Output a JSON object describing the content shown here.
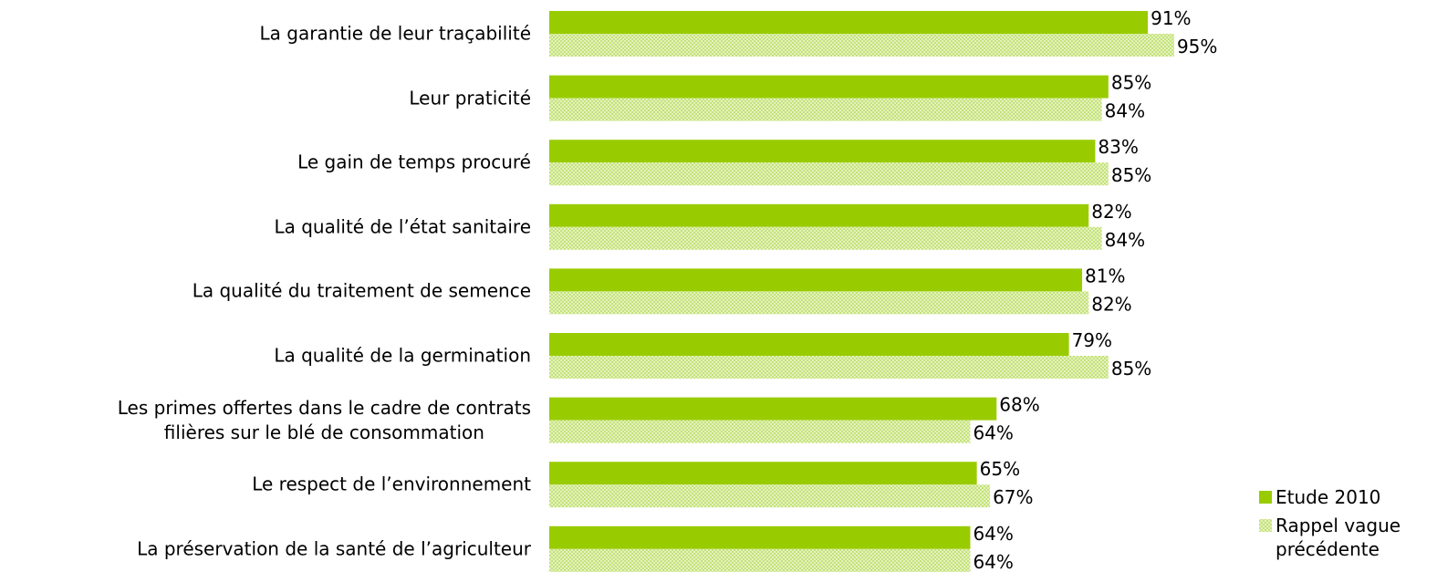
{
  "chart_data": {
    "type": "hbar",
    "categories": [
      "La garantie de leur traçabilité",
      "Leur praticité",
      "Le gain de temps procuré",
      "La qualité de l’état sanitaire",
      "La qualité du traitement de semence",
      "La qualité de la germination ",
      "Les primes offertes dans le cadre de contrats\nfilières sur le blé de consommation",
      "Le respect de l’environnement ",
      "La préservation de la santé de l’agriculteur"
    ],
    "series": [
      {
        "name": "Etude 2010",
        "color": "#99cc00",
        "values": [
          91,
          85,
          83,
          82,
          81,
          79,
          68,
          65,
          64
        ],
        "value_labels": [
          "91%",
          "85%",
          "83%",
          "82%",
          "81%",
          "79%",
          "68%",
          "65%",
          "64%"
        ]
      },
      {
        "name": "Rappel vague\nprécédente",
        "color": "#c4e27a",
        "values": [
          95,
          84,
          85,
          84,
          82,
          85,
          64,
          67,
          64
        ],
        "value_labels": [
          "95%",
          "84%",
          "85%",
          "84%",
          "82%",
          "85%",
          "64%",
          "67%",
          "64%"
        ]
      }
    ],
    "xlim": [
      0,
      100
    ],
    "legend": "right"
  }
}
